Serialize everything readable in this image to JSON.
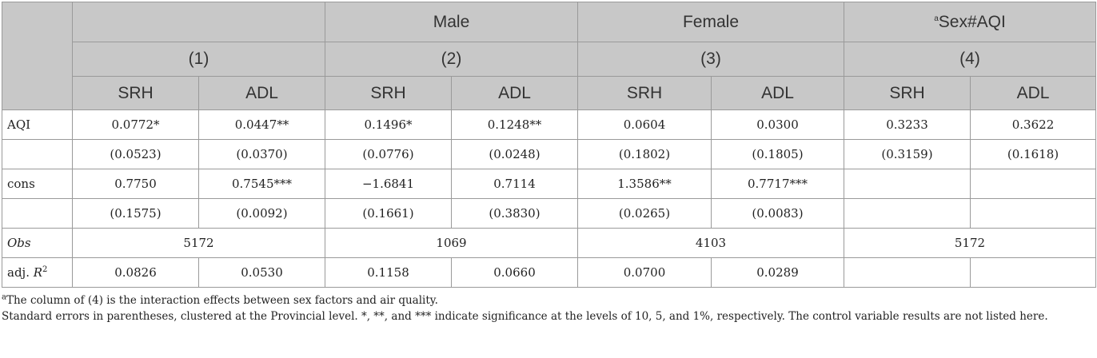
{
  "header": {
    "groups": [
      {
        "label": "",
        "sup": ""
      },
      {
        "label": "Male",
        "sup": ""
      },
      {
        "label": "Female",
        "sup": ""
      },
      {
        "label": "Sex#AQI",
        "sup": "a"
      }
    ],
    "model_numbers": [
      "(1)",
      "(2)",
      "(3)",
      "(4)"
    ],
    "outcomes": [
      "SRH",
      "ADL",
      "SRH",
      "ADL",
      "SRH",
      "ADL",
      "SRH",
      "ADL"
    ]
  },
  "rows": {
    "aqi": {
      "label": "AQI",
      "values": [
        "0.0772*",
        "0.0447**",
        "0.1496*",
        "0.1248**",
        "0.0604",
        "0.0300",
        "0.3233",
        "0.3622"
      ]
    },
    "aqi_se": {
      "label": "",
      "values": [
        "(0.0523)",
        "(0.0370)",
        "(0.0776)",
        "(0.0248)",
        "(0.1802)",
        "(0.1805)",
        "(0.3159)",
        "(0.1618)"
      ]
    },
    "cons": {
      "label": "cons",
      "values": [
        "0.7750",
        "0.7545***",
        "−1.6841",
        "0.7114",
        "1.3586**",
        "0.7717***",
        "",
        ""
      ]
    },
    "cons_se": {
      "label": "",
      "values": [
        "(0.1575)",
        "(0.0092)",
        "(0.1661)",
        "(0.3830)",
        "(0.0265)",
        "(0.0083)",
        "",
        ""
      ]
    },
    "obs": {
      "label": "Obs",
      "values": [
        "5172",
        "1069",
        "4103",
        "5172"
      ]
    },
    "adjr2": {
      "label_prefix": "adj. ",
      "label_var": "R",
      "label_sup": "2",
      "values": [
        "0.0826",
        "0.0530",
        "0.1158",
        "0.0660",
        "0.0700",
        "0.0289",
        "",
        ""
      ]
    }
  },
  "notes": {
    "note_a_sup": "a",
    "note_a": "The column of (4) is the interaction effects between sex factors and air quality.",
    "note_se": "Standard errors in parentheses, clustered at the Provincial level. *, **, and *** indicate significance at the levels of 10, 5, and 1%, respectively. The control variable results are not listed here."
  }
}
